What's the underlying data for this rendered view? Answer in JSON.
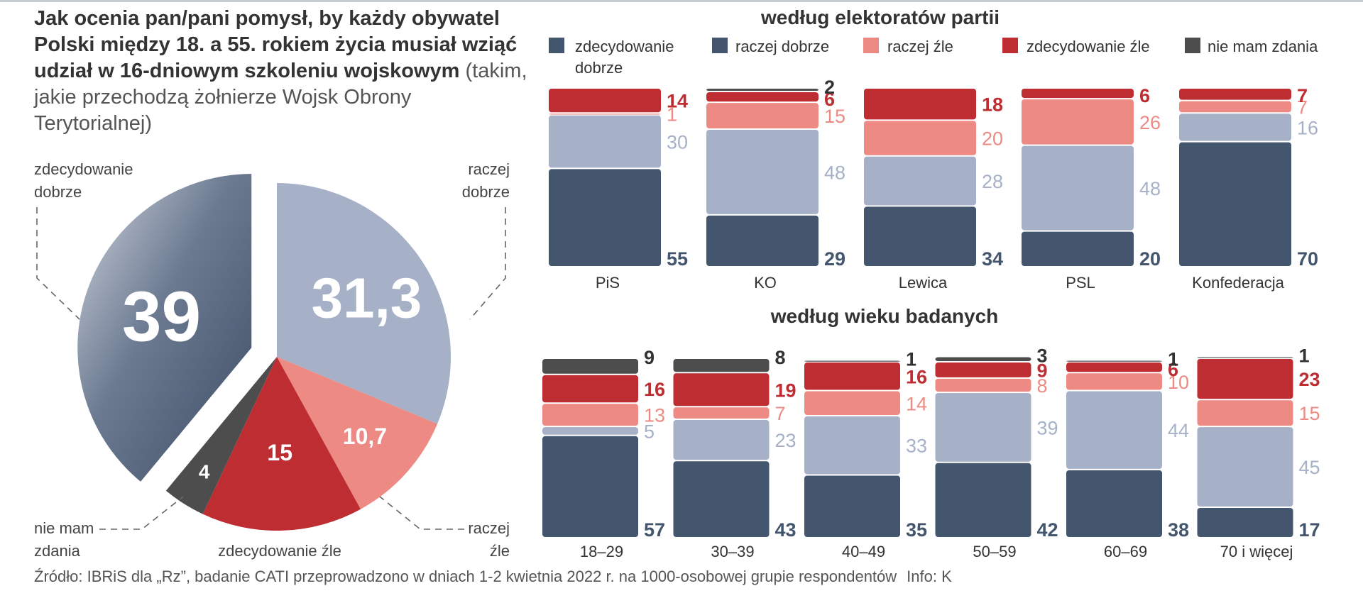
{
  "colors": {
    "zdecydowanie_dobrze": "#44566e",
    "raczej_dobrze": "#a6b1c8",
    "raczej_zle": "#ed8a83",
    "zdecydowanie_zle": "#be2d32",
    "nie_mam_zdania": "#4d4d4d",
    "label_dark": "#44566e",
    "label_red": "#be2d32",
    "label_pink": "#ed8a83",
    "label_blue": "#a6b1c8"
  },
  "title": {
    "question_bold": "Jak ocenia pan/pani pomysł, by każdy obywatel Polski między 18. a 55. rokiem życia musiał wziąć udział w 16-dniowym  szkoleniu wojskowym",
    "question_light": " (takim, jakie przechodzą żołnierze Wojsk Obrony Terytorialnej)"
  },
  "legend": {
    "zdecydowanie_dobrze_line1": "zdecydowanie",
    "zdecydowanie_dobrze_line2": "dobrze",
    "raczej_dobrze": "raczej dobrze",
    "raczej_zle": "raczej źle",
    "zdecydowanie_zle": "zdecydowanie źle",
    "nie_mam_zdania": "nie mam zdania"
  },
  "pie_labels": {
    "zd_dobrze_1": "zdecydowanie",
    "zd_dobrze_2": "dobrze",
    "raczej_dobrze_1": "raczej",
    "raczej_dobrze_2": "dobrze",
    "nie_mam_1": "nie mam",
    "nie_mam_2": "zdania",
    "zd_zle": "zdecydowanie źle",
    "raczej_zle_1": "raczej",
    "raczej_zle_2": "źle"
  },
  "chart_data": [
    {
      "type": "pie",
      "title": "",
      "slices": [
        {
          "name": "zdecydowanie dobrze",
          "value": 39,
          "label": "39",
          "key": "zdecydowanie_dobrze"
        },
        {
          "name": "raczej dobrze",
          "value": 31.3,
          "label": "31,3",
          "key": "raczej_dobrze"
        },
        {
          "name": "raczej źle",
          "value": 10.7,
          "label": "10,7",
          "key": "raczej_zle"
        },
        {
          "name": "zdecydowanie źle",
          "value": 15,
          "label": "15",
          "key": "zdecydowanie_zle"
        },
        {
          "name": "nie mam zdania",
          "value": 4,
          "label": "4",
          "key": "nie_mam_zdania"
        }
      ]
    },
    {
      "type": "bar",
      "stacked": true,
      "title": "według elektoratów partii",
      "categories": [
        "PiS",
        "KO",
        "Lewica",
        "PSL",
        "Konfederacja"
      ],
      "series": [
        {
          "name": "zdecydowanie dobrze",
          "key": "zdecydowanie_dobrze",
          "values": [
            55,
            29,
            34,
            20,
            70
          ]
        },
        {
          "name": "raczej dobrze",
          "key": "raczej_dobrze",
          "values": [
            30,
            48,
            28,
            48,
            16
          ]
        },
        {
          "name": "raczej źle",
          "key": "raczej_zle",
          "values": [
            1,
            15,
            20,
            26,
            7
          ]
        },
        {
          "name": "zdecydowanie źle",
          "key": "zdecydowanie_zle",
          "values": [
            14,
            6,
            18,
            6,
            7
          ]
        },
        {
          "name": "nie mam zdania",
          "key": "nie_mam_zdania",
          "values": [
            0,
            2,
            0,
            0,
            0
          ]
        }
      ]
    },
    {
      "type": "bar",
      "stacked": true,
      "title": "według wieku badanych",
      "categories": [
        "18–29",
        "30–39",
        "40–49",
        "50–59",
        "60–69",
        "70 i więcej"
      ],
      "series": [
        {
          "name": "zdecydowanie dobrze",
          "key": "zdecydowanie_dobrze",
          "values": [
            57,
            43,
            35,
            42,
            38,
            17
          ]
        },
        {
          "name": "raczej dobrze",
          "key": "raczej_dobrze",
          "values": [
            5,
            23,
            33,
            39,
            44,
            45
          ]
        },
        {
          "name": "raczej źle",
          "key": "raczej_zle",
          "values": [
            13,
            7,
            14,
            8,
            10,
            15
          ]
        },
        {
          "name": "zdecydowanie źle",
          "key": "zdecydowanie_zle",
          "values": [
            16,
            19,
            16,
            9,
            6,
            23
          ]
        },
        {
          "name": "nie mam zdania",
          "key": "nie_mam_zdania",
          "values": [
            9,
            8,
            1,
            3,
            1,
            1
          ]
        }
      ]
    }
  ],
  "source": {
    "text": "Źródło: IBRiS dla „Rz”, badanie CATI przeprowadzono w dniach 1-2 kwietnia 2022 r. na 1000-osobowej grupie respondentów",
    "info": "Info: K"
  }
}
